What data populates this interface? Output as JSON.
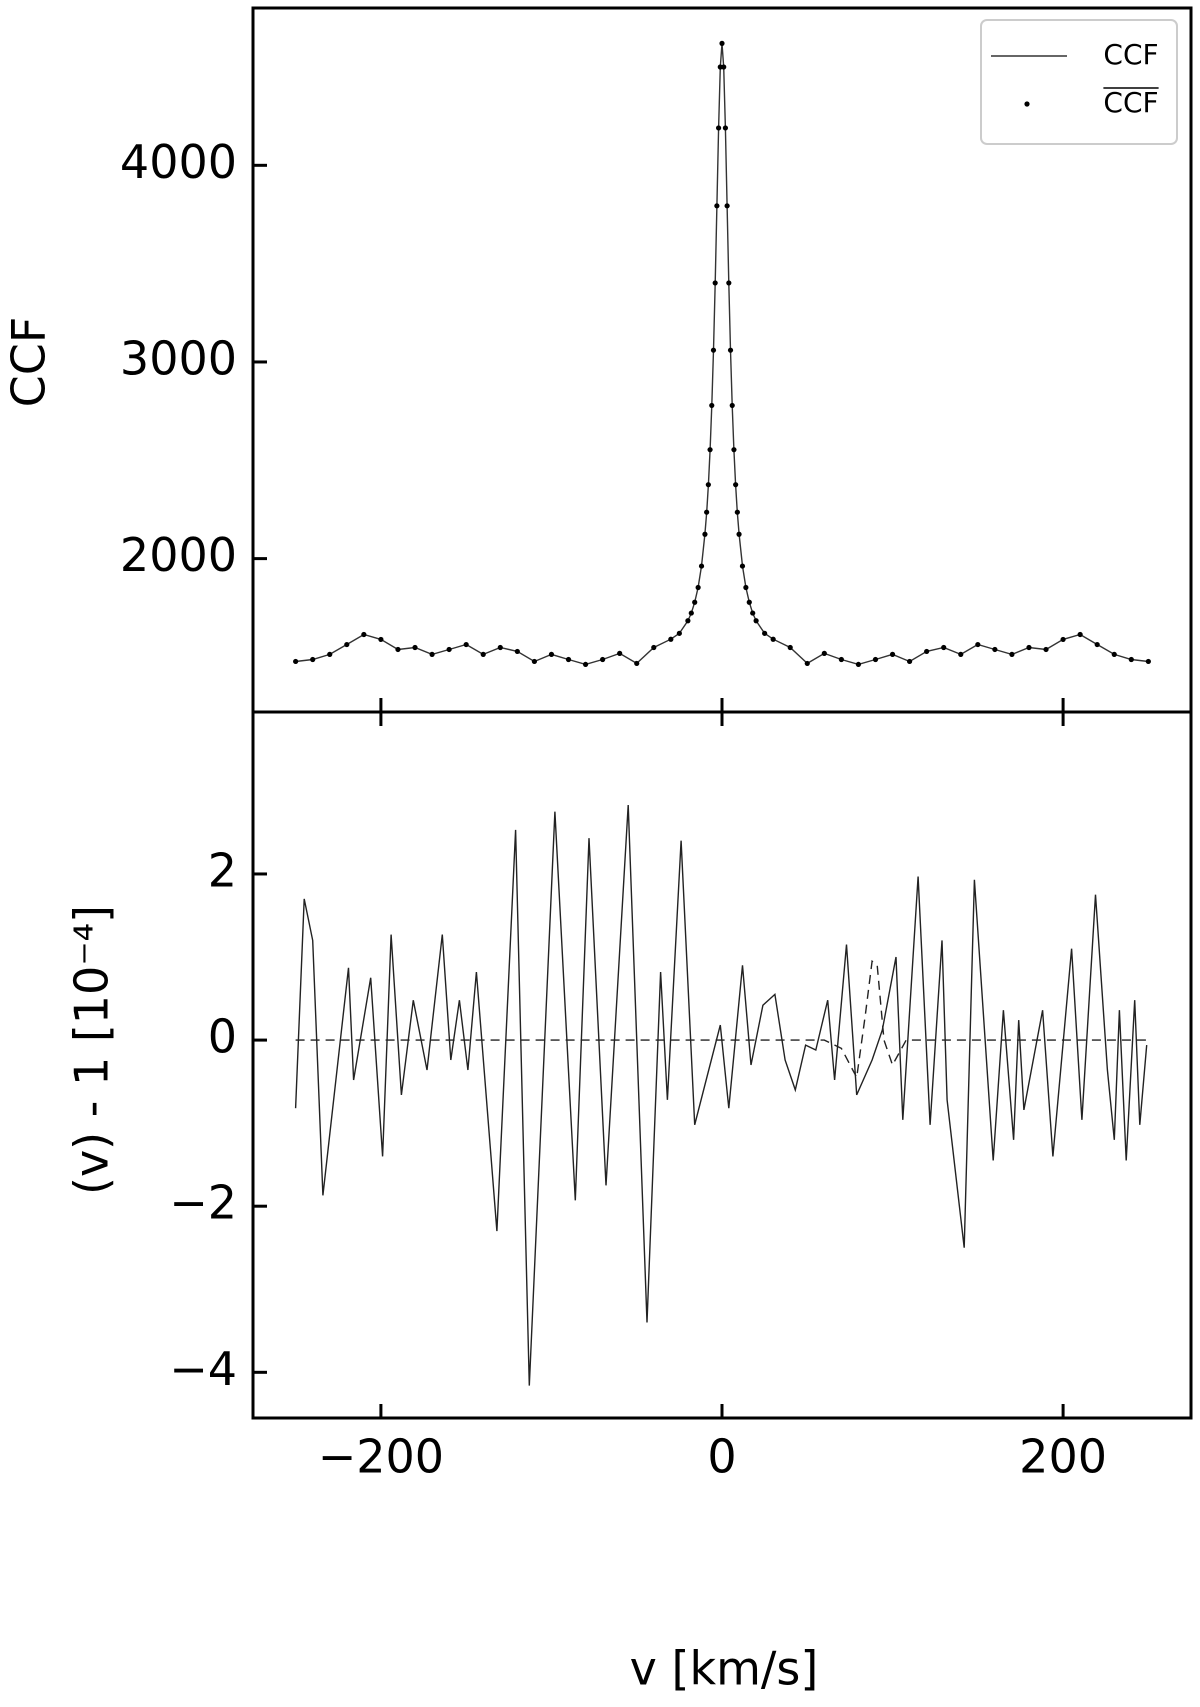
{
  "chart_data": [
    {
      "type": "line",
      "ylabel": "CCF",
      "xlim": [
        -275,
        275
      ],
      "ylim": [
        1220,
        4800
      ],
      "yticks": [
        2000,
        3000,
        4000
      ],
      "xticks": [
        -200,
        0,
        200
      ],
      "legend": "upper right",
      "series": [
        {
          "name": "CCF",
          "color": "#333333",
          "marker": "none",
          "x": [
            -250,
            -240,
            -230,
            -220,
            -210,
            -200,
            -190,
            -180,
            -170,
            -160,
            -150,
            -140,
            -130,
            -120,
            -110,
            -100,
            -90,
            -80,
            -70,
            -60,
            -50,
            -40,
            -30,
            -25,
            -20,
            -18,
            -16,
            -14,
            -12,
            -10,
            -9,
            -8,
            -7,
            -6,
            -5,
            -4,
            -3,
            -2,
            -1,
            0,
            1,
            2,
            3,
            4,
            5,
            6,
            7,
            8,
            9,
            10,
            12,
            14,
            16,
            18,
            20,
            25,
            30,
            40,
            50,
            60,
            70,
            80,
            90,
            100,
            110,
            120,
            130,
            140,
            150,
            160,
            170,
            180,
            190,
            200,
            210,
            220,
            230,
            240,
            250
          ],
          "values": [
            1477,
            1487,
            1513,
            1563,
            1614,
            1589,
            1538,
            1548,
            1513,
            1538,
            1563,
            1513,
            1548,
            1528,
            1477,
            1513,
            1487,
            1462,
            1487,
            1518,
            1467,
            1548,
            1590,
            1620,
            1684,
            1723,
            1778,
            1853,
            1962,
            2124,
            2236,
            2376,
            2554,
            2779,
            3060,
            3402,
            3794,
            4190,
            4500,
            4620,
            4500,
            4190,
            3794,
            3402,
            3060,
            2779,
            2554,
            2376,
            2236,
            2124,
            1962,
            1853,
            1778,
            1723,
            1684,
            1620,
            1590,
            1548,
            1467,
            1518,
            1487,
            1462,
            1487,
            1513,
            1477,
            1528,
            1548,
            1513,
            1563,
            1538,
            1513,
            1548,
            1538,
            1589,
            1614,
            1563,
            1513,
            1487,
            1477
          ]
        },
        {
          "name": "CCF",
          "color": "#000000",
          "marker": "dot",
          "x": [
            -250,
            -240,
            -230,
            -220,
            -210,
            -200,
            -190,
            -180,
            -170,
            -160,
            -150,
            -140,
            -130,
            -120,
            -110,
            -100,
            -90,
            -80,
            -70,
            -60,
            -50,
            -40,
            -30,
            -25,
            -20,
            -18,
            -16,
            -14,
            -12,
            -10,
            -9,
            -8,
            -7,
            -6,
            -5,
            -4,
            -3,
            -2,
            -1,
            0,
            1,
            2,
            3,
            4,
            5,
            6,
            7,
            8,
            9,
            10,
            12,
            14,
            16,
            18,
            20,
            25,
            30,
            40,
            50,
            60,
            70,
            80,
            90,
            100,
            110,
            120,
            130,
            140,
            150,
            160,
            170,
            180,
            190,
            200,
            210,
            220,
            230,
            240,
            250
          ],
          "values": [
            1477,
            1487,
            1513,
            1563,
            1614,
            1589,
            1538,
            1548,
            1513,
            1538,
            1563,
            1513,
            1548,
            1528,
            1477,
            1513,
            1487,
            1462,
            1487,
            1518,
            1467,
            1548,
            1590,
            1620,
            1684,
            1723,
            1778,
            1853,
            1962,
            2124,
            2236,
            2376,
            2554,
            2779,
            3060,
            3402,
            3794,
            4190,
            4500,
            4620,
            4500,
            4190,
            3794,
            3402,
            3060,
            2779,
            2554,
            2376,
            2236,
            2124,
            1962,
            1853,
            1778,
            1723,
            1684,
            1620,
            1590,
            1548,
            1467,
            1518,
            1487,
            1462,
            1487,
            1513,
            1477,
            1528,
            1548,
            1513,
            1563,
            1538,
            1513,
            1548,
            1538,
            1589,
            1614,
            1563,
            1513,
            1487,
            1477
          ]
        }
      ]
    },
    {
      "type": "line",
      "ylabel": "(v) - 1 [10⁻⁴]",
      "xlabel": "v [km/s]",
      "xlim": [
        -275,
        275
      ],
      "ylim": [
        -4.55,
        3.95
      ],
      "yticks": [
        {
          "value": -4,
          "label": "−4"
        },
        {
          "value": -2,
          "label": "−2"
        },
        0,
        2
      ],
      "xticks": [
        {
          "value": -200,
          "label": "−200"
        },
        0,
        200
      ],
      "series": [
        {
          "color": "#222222",
          "dash": false,
          "x": [
            -250,
            -245,
            -240,
            -234,
            -219,
            -216,
            -206,
            -199,
            -194,
            -188,
            -181,
            -173,
            -164,
            -159,
            -154,
            -149,
            -144,
            -132,
            -121,
            -113,
            -98,
            -86,
            -78,
            -68,
            -55,
            -44,
            -36,
            -32,
            -24,
            -16,
            -10,
            -1,
            4,
            12,
            17,
            24,
            31,
            37,
            43,
            49,
            55,
            62,
            66,
            73,
            79,
            88,
            94,
            102,
            106,
            115,
            122,
            129,
            132,
            142,
            148,
            159,
            165,
            171,
            174,
            177,
            188,
            194,
            205,
            211,
            219,
            226,
            230,
            233,
            237,
            242,
            245,
            249
          ],
          "values": [
            -0.82,
            1.7,
            1.2,
            -1.87,
            0.87,
            -0.48,
            0.75,
            -1.4,
            1.27,
            -0.66,
            0.48,
            -0.36,
            1.27,
            -0.24,
            0.48,
            -0.36,
            0.82,
            -2.3,
            2.53,
            -4.16,
            2.75,
            -1.93,
            2.43,
            -1.75,
            2.83,
            -3.4,
            0.82,
            -0.72,
            2.4,
            -1.02,
            -0.54,
            0.18,
            -0.82,
            0.9,
            -0.3,
            0.42,
            0.55,
            -0.24,
            -0.6,
            -0.06,
            -0.12,
            0.48,
            -0.48,
            1.15,
            -0.66,
            -0.24,
            0.12,
            1.0,
            -0.96,
            1.97,
            -1.02,
            1.2,
            -0.72,
            -2.5,
            1.93,
            -1.45,
            0.36,
            -1.2,
            0.24,
            -0.84,
            0.36,
            -1.4,
            1.1,
            -0.96,
            1.75,
            -0.36,
            -1.2,
            0.36,
            -1.45,
            0.48,
            -1.02,
            -0.06
          ]
        },
        {
          "color": "#222222",
          "dash": true,
          "x": [
            -250,
            60,
            70,
            79,
            84,
            88,
            91,
            95,
            100,
            108,
            250
          ],
          "values": [
            0,
            0,
            -0.1,
            -0.45,
            0.3,
            0.95,
            0.9,
            0,
            -0.3,
            0,
            0
          ]
        }
      ]
    }
  ]
}
